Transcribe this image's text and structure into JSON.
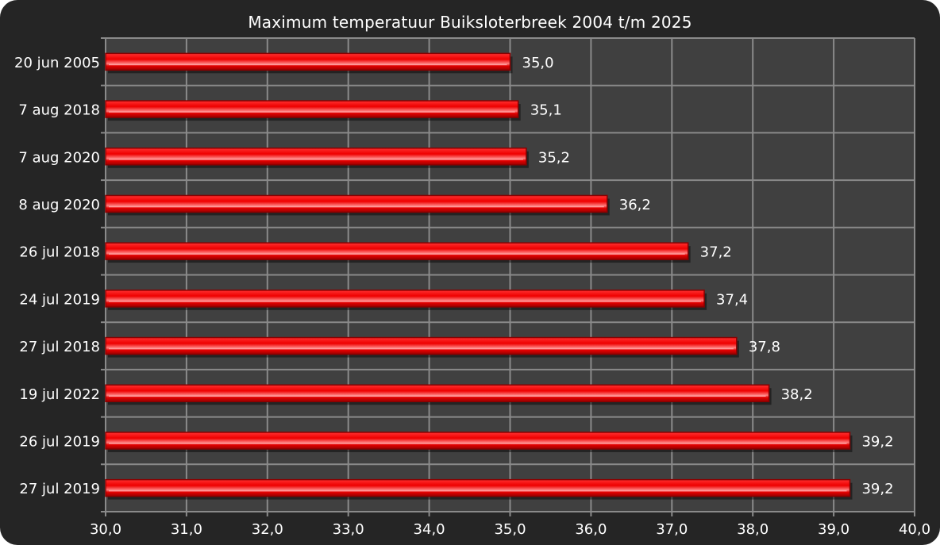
{
  "chart_data": {
    "type": "bar",
    "orientation": "horizontal",
    "title": "Maximum temperatuur Buiksloterbreek 2004 t/m 2025",
    "categories": [
      "20 jun 2005",
      "7 aug 2018",
      "7 aug 2020",
      "8 aug 2020",
      "26 jul 2018",
      "24 jul 2019",
      "27 jul 2018",
      "19 jul 2022",
      "26 jul 2019",
      "27 jul 2019"
    ],
    "values": [
      35.0,
      35.1,
      35.2,
      36.2,
      37.2,
      37.4,
      37.8,
      38.2,
      39.2,
      39.2
    ],
    "value_labels": [
      "35,0",
      "35,1",
      "35,2",
      "36,2",
      "37,2",
      "37,4",
      "37,8",
      "38,2",
      "39,2",
      "39,2"
    ],
    "xlim": [
      30,
      40
    ],
    "x_ticks": [
      30,
      31,
      32,
      33,
      34,
      35,
      36,
      37,
      38,
      39,
      40
    ],
    "x_tick_labels": [
      "30,0",
      "31,0",
      "32,0",
      "33,0",
      "34,0",
      "35,0",
      "36,0",
      "37,0",
      "38,0",
      "39,0",
      "40,0"
    ],
    "xlabel": "",
    "ylabel": "",
    "grid": true,
    "legend": "none",
    "colors": {
      "frame": "#252525",
      "plot_background": "#404040",
      "grid": "#8a8a8a",
      "bar": "#ee0000",
      "bar_dark": "#8a0000",
      "bar_highlight": "#ff9a9a",
      "text": "#ffffff"
    }
  }
}
